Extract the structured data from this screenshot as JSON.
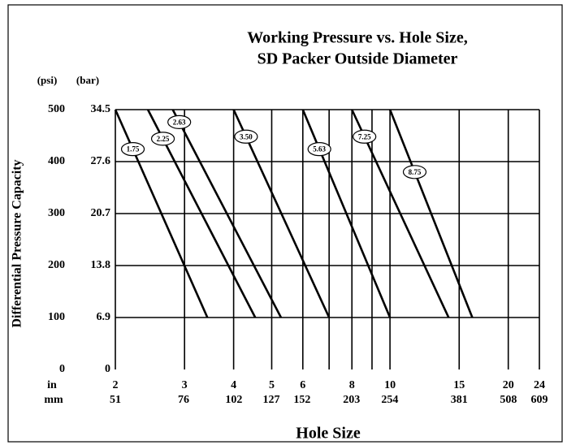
{
  "chart_data": {
    "type": "line",
    "title": [
      "Working Pressure vs. Hole Size,",
      "SD Packer Outside Diameter"
    ],
    "ylabel": "Differential Pressure Capacity",
    "yunit": "(psi)",
    "y2unit": "(bar)",
    "xlabel": "Hole Size",
    "xunit": "in",
    "x2unit": "mm",
    "xscale": "log",
    "xlim": [
      2,
      24
    ],
    "xticks": [
      2,
      3,
      4,
      5,
      6,
      8,
      10,
      15,
      20,
      24
    ],
    "xticks_minor": [
      7,
      9
    ],
    "x2lim": [
      51,
      609
    ],
    "x2ticks": [
      51,
      76,
      102,
      127,
      152,
      203,
      254,
      381,
      508,
      609
    ],
    "ylim": [
      0,
      500
    ],
    "yticks": [
      0,
      100,
      200,
      300,
      400,
      500
    ],
    "y2lim": [
      0,
      34.5
    ],
    "y2ticks": [
      0,
      6.9,
      13.8,
      20.7,
      27.6,
      34.5
    ],
    "grid": true,
    "color": "#000000",
    "series": [
      {
        "name": "1.75",
        "x": [
          2,
          3.43
        ],
        "values": [
          500,
          100
        ]
      },
      {
        "name": "2.25",
        "x": [
          2.42,
          4.54
        ],
        "values": [
          500,
          100
        ]
      },
      {
        "name": "2.63",
        "x": [
          2.8,
          5.28
        ],
        "values": [
          500,
          100
        ]
      },
      {
        "name": "3.50",
        "x": [
          4,
          7
        ],
        "values": [
          500,
          100
        ]
      },
      {
        "name": "5.63",
        "x": [
          6,
          10
        ],
        "values": [
          500,
          100
        ]
      },
      {
        "name": "7.25",
        "x": [
          8,
          14.1
        ],
        "values": [
          500,
          100
        ]
      },
      {
        "name": "8.75",
        "x": [
          10,
          16.2
        ],
        "values": [
          500,
          100
        ]
      }
    ]
  }
}
